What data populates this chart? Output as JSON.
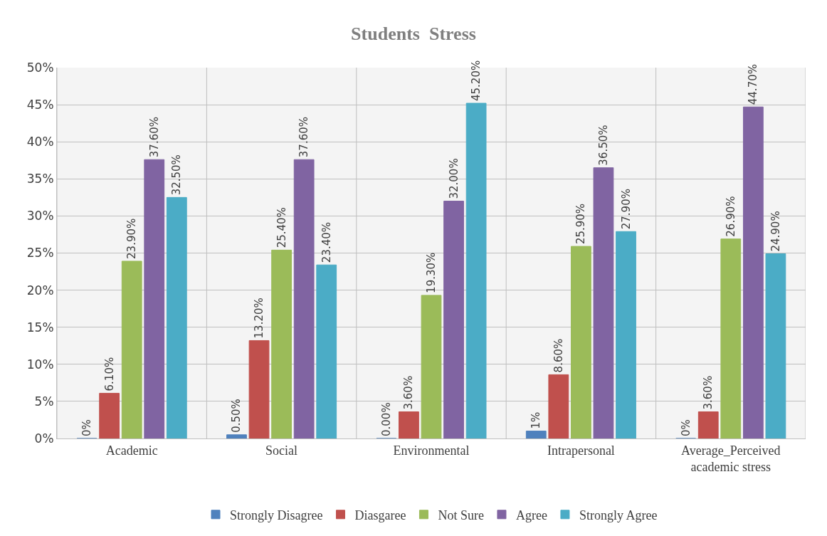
{
  "chart_data": {
    "type": "bar",
    "title": "Students  Stress",
    "categories": [
      "Academic",
      "Social",
      "Environmental",
      "Intrapersonal",
      "Average_Perceived academic stress"
    ],
    "series": [
      {
        "name": "Strongly Disagree",
        "color": "#4f81bd",
        "values": [
          0,
          0.5,
          0,
          1,
          0
        ],
        "value_labels": [
          "0%",
          "0.50%",
          "0.00%",
          "1%",
          "0%"
        ]
      },
      {
        "name": "Diasgaree",
        "color": "#c0504d",
        "values": [
          6.1,
          13.2,
          3.6,
          8.6,
          3.6
        ],
        "value_labels": [
          "6.10%",
          "13.20%",
          "3.60%",
          "8.60%",
          "3.60%"
        ]
      },
      {
        "name": "Not Sure",
        "color": "#9bbb59",
        "values": [
          23.9,
          25.4,
          19.3,
          25.9,
          26.9
        ],
        "value_labels": [
          "23.90%",
          "25.40%",
          "19.30%",
          "25.90%",
          "26.90%"
        ]
      },
      {
        "name": "Agree",
        "color": "#8064a2",
        "values": [
          37.6,
          37.6,
          32.0,
          36.5,
          44.7
        ],
        "value_labels": [
          "37.60%",
          "37.60%",
          "32.00%",
          "36.50%",
          "44.70%"
        ]
      },
      {
        "name": "Strongly Agree",
        "color": "#4bacc6",
        "values": [
          32.5,
          23.4,
          45.2,
          27.9,
          24.9
        ],
        "value_labels": [
          "32.50%",
          "23.40%",
          "45.20%",
          "27.90%",
          "24.90%"
        ]
      }
    ],
    "ylim": [
      0,
      50
    ],
    "yticks": [
      {
        "value": 0,
        "label": "0%"
      },
      {
        "value": 5,
        "label": "5%"
      },
      {
        "value": 10,
        "label": "10%"
      },
      {
        "value": 15,
        "label": "15%"
      },
      {
        "value": 20,
        "label": "20%"
      },
      {
        "value": 25,
        "label": "25%"
      },
      {
        "value": 30,
        "label": "30%"
      },
      {
        "value": 35,
        "label": "35%"
      },
      {
        "value": 40,
        "label": "40%"
      },
      {
        "value": 45,
        "label": "45%"
      },
      {
        "value": 50,
        "label": "50%"
      }
    ],
    "grid": true,
    "legend": "bottom"
  }
}
